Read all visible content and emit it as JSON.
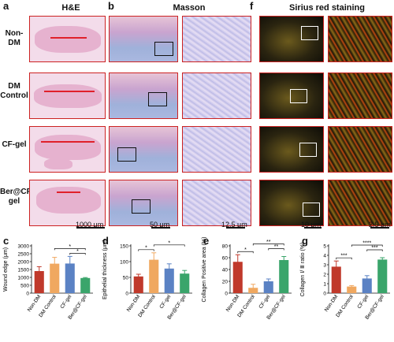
{
  "panel_labels": {
    "a": "a",
    "b": "b",
    "f": "f",
    "c": "c",
    "d": "d",
    "e": "e",
    "g": "g"
  },
  "titles": {
    "he": "H&E",
    "masson": "Masson",
    "sirius": "Sirius red staining"
  },
  "rows": [
    "Non-DM",
    "DM Control",
    "CF-gel",
    "Ber@CF-gel"
  ],
  "scales": {
    "he": "1000 μm",
    "masson_low": "50 μm",
    "masson_high": "12.5 μm",
    "sirius_low": "10 μm",
    "sirius_high": "2.5 μm"
  },
  "colors": {
    "non_dm": "#c0392b",
    "dm_control": "#f0a860",
    "cf_gel": "#5b82c4",
    "ber_cf_gel": "#3aa56b"
  },
  "chart_data": [
    {
      "panel": "c",
      "type": "bar",
      "categories": [
        "Non-DM",
        "DM Control",
        "CF-gel",
        "Ber@CF-gel"
      ],
      "values": [
        1400,
        1870,
        1880,
        960
      ],
      "errors": [
        280,
        400,
        450,
        30
      ],
      "ylabel": "Wound edge (μm)",
      "ylim": [
        0,
        3000
      ],
      "yticks": [
        0,
        500,
        1000,
        1500,
        2000,
        2500,
        3000
      ],
      "sig": [
        {
          "from": 2,
          "to": 3,
          "label": "*"
        },
        {
          "from": 1,
          "to": 3,
          "label": "*"
        }
      ]
    },
    {
      "panel": "d",
      "type": "bar",
      "categories": [
        "Non-DM",
        "DM Control",
        "CF-gel",
        "Ber@CF-gel"
      ],
      "values": [
        53,
        106,
        78,
        62
      ],
      "errors": [
        7,
        22,
        15,
        10
      ],
      "ylabel": "Epithelial thickness (μm)",
      "ylim": [
        0,
        150
      ],
      "yticks": [
        0,
        50,
        100,
        150
      ],
      "sig": [
        {
          "from": 0,
          "to": 1,
          "label": "*"
        },
        {
          "from": 1,
          "to": 3,
          "label": "*"
        }
      ]
    },
    {
      "panel": "e",
      "type": "bar",
      "categories": [
        "Non-DM",
        "DM Control",
        "CF-gel",
        "Ber@CF-gel"
      ],
      "values": [
        53,
        9,
        20,
        56
      ],
      "errors": [
        12,
        6,
        4,
        6
      ],
      "ylabel": "Collagen Positive area (%)",
      "ylim": [
        0,
        80
      ],
      "yticks": [
        0,
        20,
        40,
        60,
        80
      ],
      "sig": [
        {
          "from": 0,
          "to": 1,
          "label": "*"
        },
        {
          "from": 2,
          "to": 3,
          "label": "**"
        },
        {
          "from": 1,
          "to": 3,
          "label": "**"
        }
      ]
    },
    {
      "panel": "g",
      "type": "bar",
      "categories": [
        "Non-DM",
        "DM Control",
        "CF-gel",
        "Ber@CF-gel"
      ],
      "values": [
        2.8,
        0.7,
        1.55,
        3.55
      ],
      "errors": [
        0.6,
        0.1,
        0.3,
        0.2
      ],
      "ylabel": "Collagen Ⅰ/ Ⅲ ratio (%)",
      "ylim": [
        0,
        5
      ],
      "yticks": [
        0,
        1,
        2,
        3,
        4,
        5
      ],
      "sig": [
        {
          "from": 0,
          "to": 1,
          "label": "***"
        },
        {
          "from": 2,
          "to": 3,
          "label": "***"
        },
        {
          "from": 1,
          "to": 3,
          "label": "****"
        }
      ]
    }
  ]
}
